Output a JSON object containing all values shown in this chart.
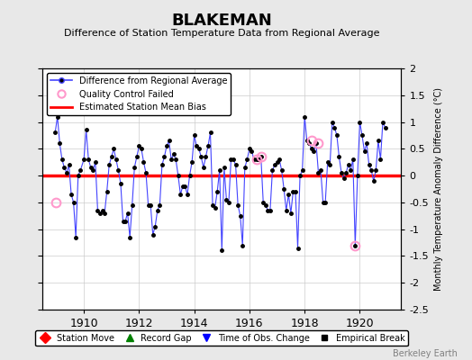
{
  "title": "BLAKEMAN",
  "subtitle": "Difference of Station Temperature Data from Regional Average",
  "ylabel_right": "Monthly Temperature Anomaly Difference (°C)",
  "bias_value": 0.0,
  "ylim": [
    -2.5,
    2.0
  ],
  "xlim": [
    1908.5,
    1921.5
  ],
  "xticks": [
    1910,
    1912,
    1914,
    1916,
    1918,
    1920
  ],
  "yticks_right": [
    -2.5,
    -2.0,
    -1.5,
    -1.0,
    -0.5,
    0.0,
    0.5,
    1.0,
    1.5,
    2.0
  ],
  "background_color": "#e8e8e8",
  "plot_bg_color": "#ffffff",
  "line_color": "#4444ff",
  "bias_color": "#ff0000",
  "marker_color": "#000000",
  "qc_color": "#ff99cc",
  "footer": "Berkeley Earth",
  "data": {
    "times": [
      1908.958,
      1909.042,
      1909.125,
      1909.208,
      1909.292,
      1909.375,
      1909.458,
      1909.542,
      1909.625,
      1909.708,
      1909.792,
      1909.875,
      1910.0,
      1910.083,
      1910.167,
      1910.25,
      1910.333,
      1910.417,
      1910.5,
      1910.583,
      1910.667,
      1910.75,
      1910.833,
      1910.917,
      1911.0,
      1911.083,
      1911.167,
      1911.25,
      1911.333,
      1911.417,
      1911.5,
      1911.583,
      1911.667,
      1911.75,
      1911.833,
      1911.917,
      1912.0,
      1912.083,
      1912.167,
      1912.25,
      1912.333,
      1912.417,
      1912.5,
      1912.583,
      1912.667,
      1912.75,
      1912.833,
      1912.917,
      1913.0,
      1913.083,
      1913.167,
      1913.25,
      1913.333,
      1913.417,
      1913.5,
      1913.583,
      1913.667,
      1913.75,
      1913.833,
      1913.917,
      1914.0,
      1914.083,
      1914.167,
      1914.25,
      1914.333,
      1914.417,
      1914.5,
      1914.583,
      1914.667,
      1914.75,
      1914.833,
      1914.917,
      1915.0,
      1915.083,
      1915.167,
      1915.25,
      1915.333,
      1915.417,
      1915.5,
      1915.583,
      1915.667,
      1915.75,
      1915.833,
      1915.917,
      1916.0,
      1916.083,
      1916.167,
      1916.25,
      1916.333,
      1916.417,
      1916.5,
      1916.583,
      1916.667,
      1916.75,
      1916.833,
      1916.917,
      1917.0,
      1917.083,
      1917.167,
      1917.25,
      1917.333,
      1917.417,
      1917.5,
      1917.583,
      1917.667,
      1917.75,
      1917.833,
      1917.917,
      1918.0,
      1918.083,
      1918.167,
      1918.25,
      1918.333,
      1918.417,
      1918.5,
      1918.583,
      1918.667,
      1918.75,
      1918.833,
      1918.917,
      1919.0,
      1919.083,
      1919.167,
      1919.25,
      1919.333,
      1919.417,
      1919.5,
      1919.583,
      1919.667,
      1919.75,
      1919.833,
      1919.917,
      1920.0,
      1920.083,
      1920.167,
      1920.25,
      1920.333,
      1920.417,
      1920.5,
      1920.583,
      1920.667,
      1920.75,
      1920.833,
      1920.917
    ],
    "values": [
      0.8,
      1.1,
      0.6,
      0.3,
      0.15,
      0.05,
      0.2,
      -0.35,
      -0.5,
      -1.15,
      0.0,
      0.1,
      0.3,
      0.85,
      0.3,
      0.15,
      0.1,
      0.25,
      -0.65,
      -0.7,
      -0.65,
      -0.7,
      -0.3,
      0.2,
      0.35,
      0.5,
      0.3,
      0.1,
      -0.15,
      -0.85,
      -0.85,
      -0.7,
      -1.15,
      -0.55,
      0.15,
      0.35,
      0.55,
      0.5,
      0.25,
      0.05,
      -0.55,
      -0.55,
      -1.1,
      -0.95,
      -0.65,
      -0.55,
      0.2,
      0.35,
      0.55,
      0.65,
      0.3,
      0.4,
      0.3,
      0.0,
      -0.35,
      -0.2,
      -0.2,
      -0.35,
      0.0,
      0.25,
      0.75,
      0.55,
      0.5,
      0.35,
      0.15,
      0.35,
      0.55,
      0.8,
      -0.55,
      -0.6,
      -0.3,
      0.1,
      -1.4,
      0.15,
      -0.45,
      -0.5,
      0.3,
      0.3,
      0.2,
      -0.55,
      -0.75,
      -1.3,
      0.15,
      0.3,
      0.5,
      0.45,
      0.3,
      0.3,
      0.3,
      0.35,
      -0.5,
      -0.55,
      -0.65,
      -0.65,
      0.1,
      0.2,
      0.25,
      0.3,
      0.1,
      -0.25,
      -0.65,
      -0.35,
      -0.7,
      -0.3,
      -0.3,
      -1.35,
      0.0,
      0.1,
      1.1,
      0.65,
      0.6,
      0.5,
      0.45,
      0.6,
      0.05,
      0.1,
      -0.5,
      -0.5,
      0.25,
      0.2,
      1.0,
      0.9,
      0.75,
      0.35,
      0.05,
      -0.05,
      0.05,
      0.2,
      0.1,
      0.3,
      -1.3,
      0.0,
      1.0,
      0.75,
      0.45,
      0.6,
      0.2,
      0.1,
      -0.1,
      0.1,
      0.65,
      0.3,
      1.0,
      0.9
    ],
    "qc_failed_times": [
      1909.0,
      1916.25,
      1916.417,
      1918.25,
      1918.5,
      1919.833
    ],
    "qc_failed_values": [
      -0.5,
      0.3,
      0.35,
      0.65,
      0.6,
      -1.3
    ]
  }
}
